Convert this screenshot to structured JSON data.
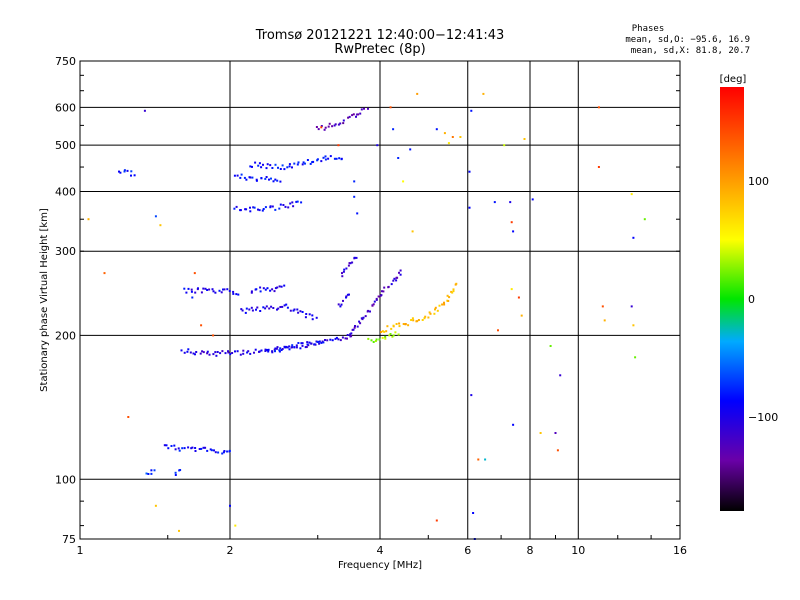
{
  "chart_data": {
    "type": "scatter",
    "title": "Tromsø 20121221 12:40:00−12:41:43",
    "subtitle": "RwPretec (8p)",
    "xlabel": "Frequency [MHz]",
    "ylabel": "Stationary phase Virtual Height [km]",
    "xscale": "log",
    "yscale": "log",
    "xlim": [
      1,
      16
    ],
    "ylim": [
      75,
      750
    ],
    "xticks": [
      1,
      2,
      4,
      6,
      8,
      10,
      16
    ],
    "xtick_labels": [
      "1",
      "2",
      "4",
      "6",
      "8",
      "10",
      "16"
    ],
    "yticks": [
      75,
      100,
      200,
      300,
      400,
      500,
      600,
      750
    ],
    "ytick_labels": [
      "75",
      "100",
      "200",
      "300",
      "400",
      "500",
      "600",
      "750"
    ],
    "grid": true,
    "stats_box": {
      "title": "Phases",
      "line1": "mean, sd,O: −95.6, 16.9",
      "line2": "mean, sd,X:  81.8, 20.7"
    },
    "colorbar": {
      "label": "[deg]",
      "range": [
        -180,
        180
      ],
      "ticks": [
        -100,
        0,
        100
      ],
      "tick_labels": [
        "−100",
        "0",
        "100"
      ]
    },
    "traces": [
      {
        "x": [
          1.48,
          1.56,
          1.68,
          1.82,
          1.98,
          2.02
        ],
        "y": [
          118,
          116,
          116,
          115,
          114,
          114
        ],
        "phase": -100
      },
      {
        "x": [
          1.62,
          1.75,
          1.9,
          2.0,
          2.1
        ],
        "y": [
          248,
          248,
          247,
          247,
          246
        ],
        "phase": -108
      },
      {
        "x": [
          1.6,
          1.72,
          1.88,
          2.05,
          2.25,
          2.4,
          2.6,
          2.85,
          3.05,
          3.25,
          3.4,
          3.55
        ],
        "y": [
          186,
          184,
          183,
          184,
          185,
          186,
          188,
          191,
          193,
          196,
          198,
          200
        ],
        "phase": -112
      },
      {
        "x": [
          2.35,
          2.5,
          2.7,
          2.9,
          3.1
        ],
        "y": [
          186,
          187,
          190,
          192,
          194
        ],
        "phase": -100
      },
      {
        "x": [
          2.2,
          2.4,
          2.6
        ],
        "y": [
          248,
          250,
          252
        ],
        "phase": -108
      },
      {
        "x": [
          3.0,
          3.2,
          3.4,
          3.6,
          3.8
        ],
        "y": [
          540,
          550,
          565,
          580,
          600
        ],
        "phase": -130
      },
      {
        "x": [
          3.35,
          3.45,
          3.6
        ],
        "y": [
          265,
          278,
          295
        ],
        "phase": -118
      },
      {
        "x": [
          3.45,
          3.6,
          3.8,
          3.95,
          4.1,
          4.3,
          4.45
        ],
        "y": [
          198,
          210,
          225,
          238,
          250,
          262,
          275
        ],
        "phase": -125
      },
      {
        "x": [
          3.8,
          4.0,
          4.2,
          4.4
        ],
        "y": [
          195,
          197,
          200,
          203
        ],
        "phase": 30
      },
      {
        "x": [
          4.0,
          4.2,
          4.4,
          4.6,
          4.8,
          5.0,
          5.2,
          5.4,
          5.55,
          5.7
        ],
        "y": [
          205,
          207,
          210,
          213,
          217,
          220,
          226,
          234,
          245,
          258
        ],
        "phase": 85
      },
      {
        "x": [
          2.2,
          2.6,
          3.1,
          3.4
        ],
        "y": [
          455,
          450,
          470,
          470
        ],
        "phase": -95
      },
      {
        "x": [
          2.05,
          2.3,
          2.55,
          2.8
        ],
        "y": [
          370,
          365,
          372,
          380
        ],
        "phase": -100
      },
      {
        "x": [
          2.05,
          2.35,
          2.55
        ],
        "y": [
          430,
          425,
          420
        ],
        "phase": -95
      },
      {
        "x": [
          2.1,
          2.6,
          3.0
        ],
        "y": [
          225,
          230,
          215
        ],
        "phase": -110
      },
      {
        "x": [
          3.3,
          3.5
        ],
        "y": [
          230,
          245
        ],
        "phase": -110
      },
      {
        "x": [
          1.2,
          1.3
        ],
        "y": [
          440,
          435
        ],
        "phase": -95
      },
      {
        "x": [
          1.36,
          1.42
        ],
        "y": [
          103,
          105
        ],
        "phase": -85
      },
      {
        "x": [
          1.55,
          1.6
        ],
        "y": [
          103,
          106
        ],
        "phase": -95
      }
    ],
    "isolated_points": [
      {
        "x": 1.04,
        "y": 350,
        "phase": 90
      },
      {
        "x": 1.12,
        "y": 270,
        "phase": 130
      },
      {
        "x": 1.25,
        "y": 135,
        "phase": 140
      },
      {
        "x": 1.35,
        "y": 590,
        "phase": -120
      },
      {
        "x": 1.42,
        "y": 355,
        "phase": -80
      },
      {
        "x": 1.45,
        "y": 340,
        "phase": 80
      },
      {
        "x": 1.42,
        "y": 88,
        "phase": 80
      },
      {
        "x": 1.58,
        "y": 78,
        "phase": 80
      },
      {
        "x": 1.7,
        "y": 270,
        "phase": 140
      },
      {
        "x": 1.68,
        "y": 240,
        "phase": -90
      },
      {
        "x": 1.75,
        "y": 210,
        "phase": 140
      },
      {
        "x": 1.85,
        "y": 200,
        "phase": 140
      },
      {
        "x": 2.0,
        "y": 88,
        "phase": -100
      },
      {
        "x": 2.05,
        "y": 80,
        "phase": 60
      },
      {
        "x": 3.05,
        "y": 545,
        "phase": 150
      },
      {
        "x": 3.3,
        "y": 500,
        "phase": 150
      },
      {
        "x": 3.55,
        "y": 420,
        "phase": -90
      },
      {
        "x": 3.55,
        "y": 390,
        "phase": -90
      },
      {
        "x": 3.6,
        "y": 360,
        "phase": -95
      },
      {
        "x": 3.95,
        "y": 500,
        "phase": -110
      },
      {
        "x": 4.2,
        "y": 600,
        "phase": 140
      },
      {
        "x": 4.25,
        "y": 540,
        "phase": -90
      },
      {
        "x": 4.35,
        "y": 470,
        "phase": -90
      },
      {
        "x": 4.45,
        "y": 420,
        "phase": 50
      },
      {
        "x": 4.6,
        "y": 490,
        "phase": -95
      },
      {
        "x": 4.65,
        "y": 330,
        "phase": 80
      },
      {
        "x": 4.75,
        "y": 640,
        "phase": 100
      },
      {
        "x": 5.2,
        "y": 540,
        "phase": -95
      },
      {
        "x": 5.4,
        "y": 530,
        "phase": 90
      },
      {
        "x": 5.5,
        "y": 505,
        "phase": 60
      },
      {
        "x": 5.6,
        "y": 520,
        "phase": 120
      },
      {
        "x": 5.8,
        "y": 520,
        "phase": 80
      },
      {
        "x": 5.2,
        "y": 82,
        "phase": 150
      },
      {
        "x": 6.05,
        "y": 440,
        "phase": -100
      },
      {
        "x": 6.05,
        "y": 370,
        "phase": -100
      },
      {
        "x": 6.1,
        "y": 590,
        "phase": -95
      },
      {
        "x": 6.1,
        "y": 150,
        "phase": -110
      },
      {
        "x": 6.15,
        "y": 85,
        "phase": -100
      },
      {
        "x": 6.2,
        "y": 75,
        "phase": -95
      },
      {
        "x": 6.3,
        "y": 110,
        "phase": 130
      },
      {
        "x": 6.45,
        "y": 640,
        "phase": 90
      },
      {
        "x": 6.5,
        "y": 110,
        "phase": -40
      },
      {
        "x": 6.8,
        "y": 380,
        "phase": -95
      },
      {
        "x": 6.9,
        "y": 205,
        "phase": 140
      },
      {
        "x": 7.1,
        "y": 500,
        "phase": 40
      },
      {
        "x": 7.3,
        "y": 380,
        "phase": -110
      },
      {
        "x": 7.35,
        "y": 345,
        "phase": 150
      },
      {
        "x": 7.4,
        "y": 330,
        "phase": -100
      },
      {
        "x": 7.35,
        "y": 250,
        "phase": 60
      },
      {
        "x": 7.4,
        "y": 130,
        "phase": -100
      },
      {
        "x": 7.6,
        "y": 240,
        "phase": 150
      },
      {
        "x": 7.7,
        "y": 220,
        "phase": 90
      },
      {
        "x": 7.8,
        "y": 515,
        "phase": 80
      },
      {
        "x": 8.4,
        "y": 125,
        "phase": 80
      },
      {
        "x": 8.1,
        "y": 385,
        "phase": -100
      },
      {
        "x": 8.8,
        "y": 190,
        "phase": 20
      },
      {
        "x": 9.0,
        "y": 125,
        "phase": -130
      },
      {
        "x": 9.1,
        "y": 115,
        "phase": 140
      },
      {
        "x": 9.2,
        "y": 165,
        "phase": -120
      },
      {
        "x": 11.0,
        "y": 600,
        "phase": 140
      },
      {
        "x": 11.0,
        "y": 450,
        "phase": 150
      },
      {
        "x": 11.2,
        "y": 230,
        "phase": 140
      },
      {
        "x": 11.3,
        "y": 215,
        "phase": 90
      },
      {
        "x": 12.8,
        "y": 395,
        "phase": 60
      },
      {
        "x": 12.9,
        "y": 320,
        "phase": -100
      },
      {
        "x": 12.8,
        "y": 230,
        "phase": -120
      },
      {
        "x": 12.9,
        "y": 210,
        "phase": 80
      },
      {
        "x": 13.0,
        "y": 180,
        "phase": 20
      },
      {
        "x": 13.6,
        "y": 350,
        "phase": 20
      }
    ]
  }
}
